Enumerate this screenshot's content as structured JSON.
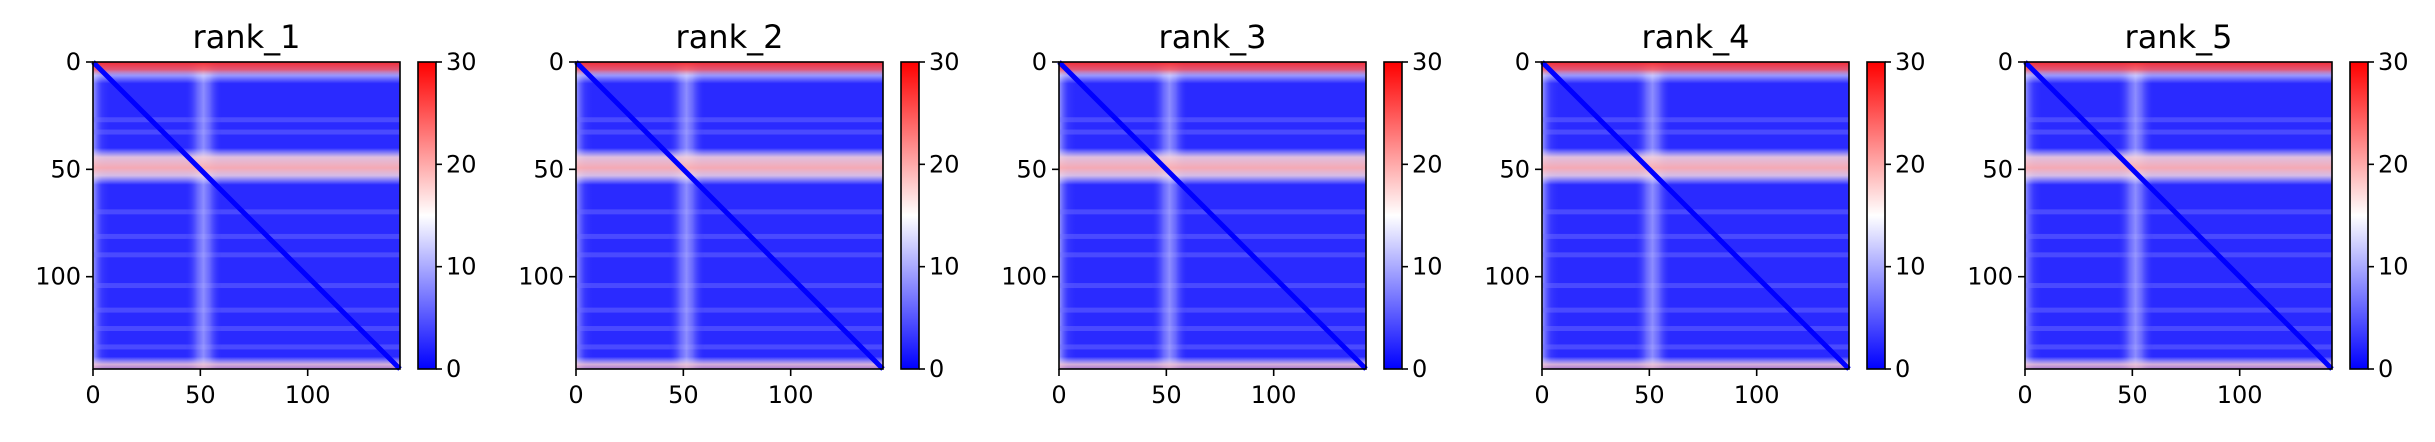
{
  "colorbar": {
    "stops": [
      "#0000ff",
      "#ffffff",
      "#ff0000"
    ],
    "min": 0,
    "max": 30,
    "ticks": [
      0,
      10,
      20,
      30
    ]
  },
  "chart_data": [
    {
      "type": "heatmap",
      "title": "rank_1",
      "xlabel": "",
      "ylabel": "",
      "xlim": [
        0,
        143
      ],
      "ylim": [
        143,
        0
      ],
      "xticks": [
        0,
        50,
        100
      ],
      "yticks": [
        0,
        50,
        100
      ],
      "colormap": "bwr",
      "color_range": [
        0,
        30
      ]
    },
    {
      "type": "heatmap",
      "title": "rank_2",
      "xlabel": "",
      "ylabel": "",
      "xlim": [
        0,
        143
      ],
      "ylim": [
        143,
        0
      ],
      "xticks": [
        0,
        50,
        100
      ],
      "yticks": [
        0,
        50,
        100
      ],
      "colormap": "bwr",
      "color_range": [
        0,
        30
      ]
    },
    {
      "type": "heatmap",
      "title": "rank_3",
      "xlabel": "",
      "ylabel": "",
      "xlim": [
        0,
        143
      ],
      "ylim": [
        143,
        0
      ],
      "xticks": [
        0,
        50,
        100
      ],
      "yticks": [
        0,
        50,
        100
      ],
      "colormap": "bwr",
      "color_range": [
        0,
        30
      ]
    },
    {
      "type": "heatmap",
      "title": "rank_4",
      "xlabel": "",
      "ylabel": "",
      "xlim": [
        0,
        143
      ],
      "ylim": [
        143,
        0
      ],
      "xticks": [
        0,
        50,
        100
      ],
      "yticks": [
        0,
        50,
        100
      ],
      "colormap": "bwr",
      "color_range": [
        0,
        30
      ]
    },
    {
      "type": "heatmap",
      "title": "rank_5",
      "xlabel": "",
      "ylabel": "",
      "xlim": [
        0,
        143
      ],
      "ylim": [
        143,
        0
      ],
      "xticks": [
        0,
        50,
        100
      ],
      "yticks": [
        0,
        50,
        100
      ],
      "colormap": "bwr",
      "color_range": [
        0,
        30
      ]
    }
  ]
}
